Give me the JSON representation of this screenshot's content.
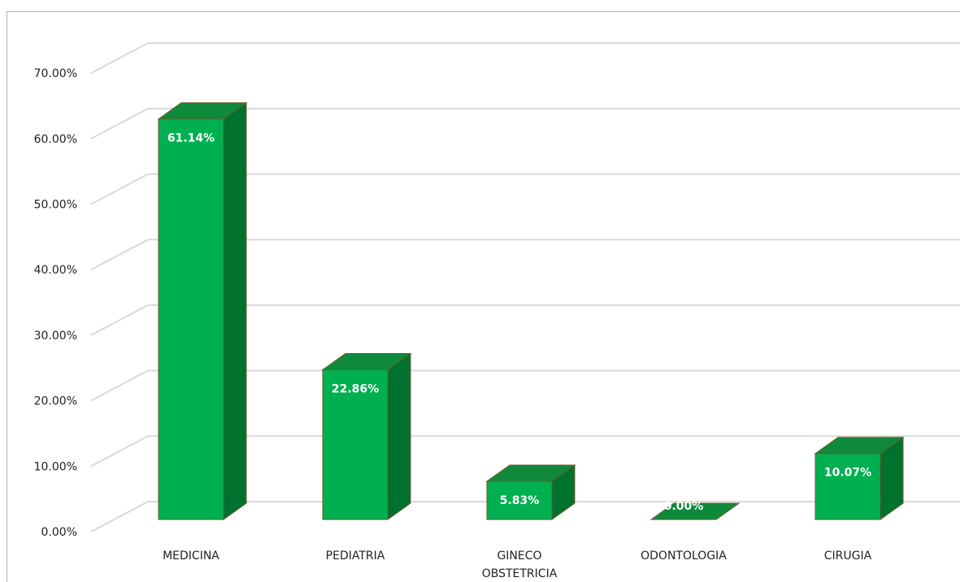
{
  "chart_data": {
    "type": "bar",
    "categories": [
      "MEDICINA",
      "PEDIATRIA",
      "GINECO OBSTETRICIA",
      "ODONTOLOGIA",
      "CIRUGIA"
    ],
    "category_lines": [
      [
        "MEDICINA"
      ],
      [
        "PEDIATRIA"
      ],
      [
        "GINECO",
        "OBSTETRICIA"
      ],
      [
        "ODONTOLOGIA"
      ],
      [
        "CIRUGIA"
      ]
    ],
    "values": [
      61.14,
      22.86,
      5.83,
      0.0,
      10.07
    ],
    "value_labels": [
      "61.14%",
      "22.86%",
      "5.83%",
      "0.00%",
      "10.07%"
    ],
    "ylim": [
      0,
      70
    ],
    "yticks": [
      "0.00%",
      "10.00%",
      "20.00%",
      "30.00%",
      "40.00%",
      "50.00%",
      "60.00%",
      "70.00%"
    ],
    "three_d": true,
    "grid": true,
    "legend": "none",
    "colors": {
      "front": "#00b050",
      "side": "#00722f",
      "top": "#0f8a3a",
      "edge": "#6b5a2a",
      "grid": "#d9d9d9"
    }
  }
}
